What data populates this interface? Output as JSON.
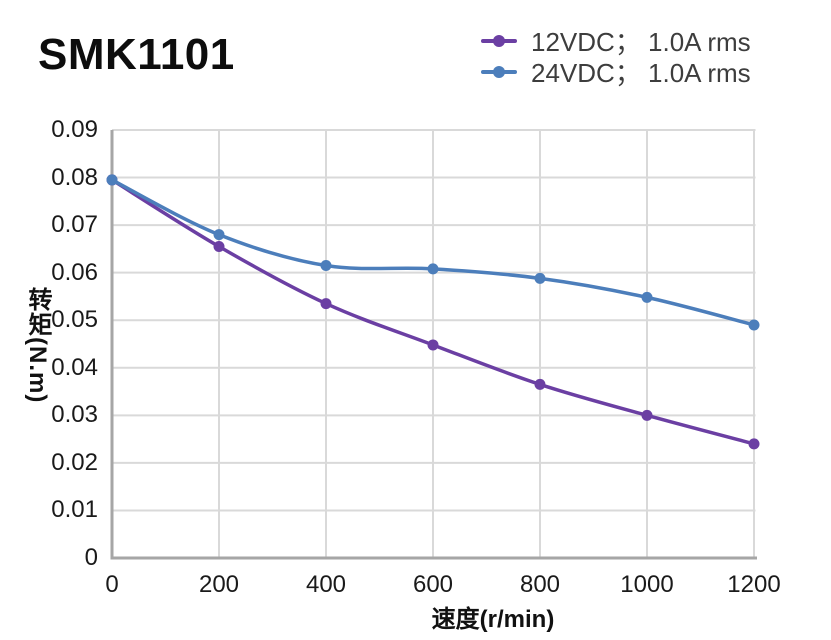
{
  "title": "SMK1101",
  "legend": {
    "position": "top-right",
    "items": [
      {
        "label": "12VDC； 1.0A rms",
        "color": "#6B3FA3"
      },
      {
        "label": "24VDC； 1.0A rms",
        "color": "#4C7EBB"
      }
    ]
  },
  "chart_data": {
    "type": "line",
    "title": "SMK1101",
    "xlabel": "速度(r/min)",
    "ylabel": "转矩(N.m)",
    "x": [
      0,
      200,
      400,
      600,
      800,
      1000,
      1200
    ],
    "series": [
      {
        "name": "12VDC； 1.0A rms",
        "color": "#6B3FA3",
        "values": [
          0.0795,
          0.0655,
          0.0535,
          0.0448,
          0.0365,
          0.03,
          0.024
        ]
      },
      {
        "name": "24VDC； 1.0A rms",
        "color": "#4C7EBB",
        "values": [
          0.0795,
          0.068,
          0.0615,
          0.0608,
          0.0588,
          0.0548,
          0.049
        ]
      }
    ],
    "xlim": [
      0,
      1200
    ],
    "ylim": [
      0,
      0.09
    ],
    "x_ticks": [
      0,
      200,
      400,
      600,
      800,
      1000,
      1200
    ],
    "x_tick_labels": [
      "0",
      "200",
      "400",
      "600",
      "800",
      "1000",
      "1200"
    ],
    "y_ticks": [
      0,
      0.01,
      0.02,
      0.03,
      0.04,
      0.05,
      0.06,
      0.07,
      0.08,
      0.09
    ],
    "y_tick_labels": [
      "0",
      "0.01",
      "0.02",
      "0.03",
      "0.04",
      "0.05",
      "0.06",
      "0.07",
      "0.08",
      "0.09"
    ],
    "grid": true,
    "smooth": true,
    "legend_position": "top-right",
    "marker": "circle",
    "colors": {
      "grid": "#D9D9D9",
      "axis": "#A6A6A6",
      "tick_text": "#1A1A1A",
      "legend_text": "#3D3D3D",
      "title_text": "#0D0D0D"
    }
  }
}
